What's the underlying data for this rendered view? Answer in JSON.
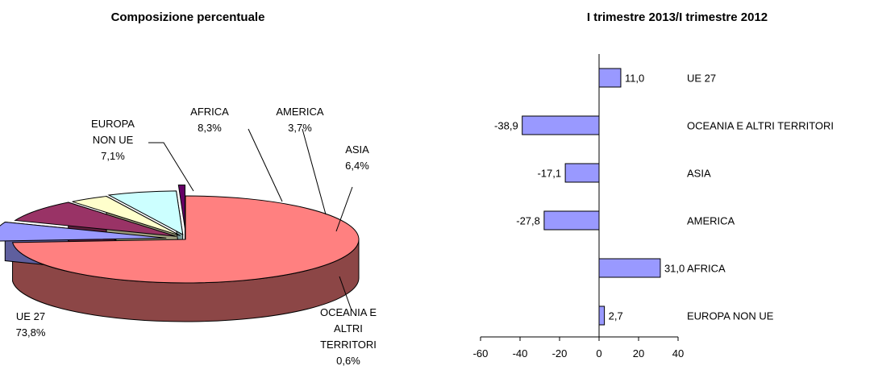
{
  "chart_data": [
    {
      "type": "pie",
      "title": "Composizione percentuale",
      "slices": [
        {
          "label": "UE 27",
          "value": 73.8,
          "value_label": "73,8%",
          "color": "#FF8080"
        },
        {
          "label": "EUROPA NON UE",
          "label_lines": [
            "EUROPA",
            "NON UE"
          ],
          "value": 7.1,
          "value_label": "7,1%",
          "color": "#9999FF"
        },
        {
          "label": "AFRICA",
          "value": 8.3,
          "value_label": "8,3%",
          "color": "#993366"
        },
        {
          "label": "AMERICA",
          "value": 3.7,
          "value_label": "3,7%",
          "color": "#FFFFCC"
        },
        {
          "label": "ASIA",
          "value": 6.4,
          "value_label": "6,4%",
          "color": "#CCFFFF"
        },
        {
          "label": "OCEANIA E ALTRI TERRITORI",
          "label_lines": [
            "OCEANIA E",
            "ALTRI",
            "TERRITORI"
          ],
          "value": 0.6,
          "value_label": "0,6%",
          "color": "#660066"
        }
      ]
    },
    {
      "type": "bar",
      "orientation": "horizontal",
      "title": "I trimestre 2013/I trimestre 2012",
      "categories": [
        "UE 27",
        "OCEANIA E ALTRI TERRITORI",
        "ASIA",
        "AMERICA",
        "AFRICA",
        "EUROPA NON UE"
      ],
      "values": [
        11.0,
        -38.9,
        -17.1,
        -27.8,
        31.0,
        2.7
      ],
      "value_labels": [
        "11,0",
        "-38,9",
        "-17,1",
        "-27,8",
        "31,0",
        "2,7"
      ],
      "xlim": [
        -60,
        40
      ],
      "xticks": [
        "-60",
        "-40",
        "-20",
        "0",
        "20",
        "40"
      ],
      "bar_color": "#9999FF"
    }
  ]
}
